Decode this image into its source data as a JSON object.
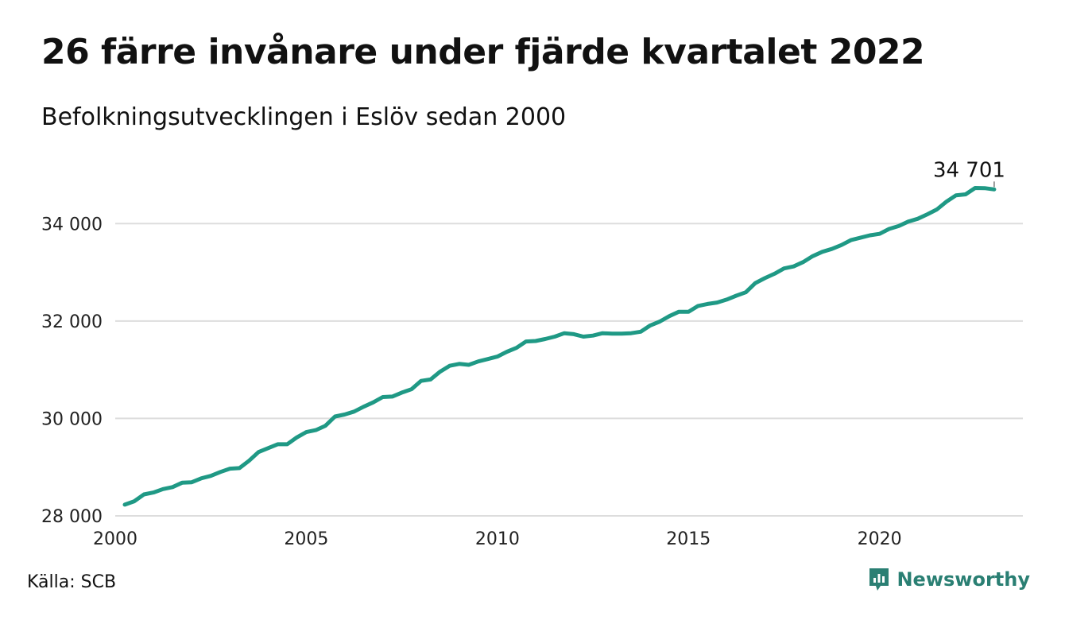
{
  "header": {
    "title": "26 färre invånare under fjärde kvartalet 2022",
    "subtitle": "Befolkningsutvecklingen i Eslöv sedan 2000"
  },
  "footer": {
    "source": "Källa: SCB",
    "brand": "Newsworthy"
  },
  "colors": {
    "line": "#1f9985",
    "grid": "#dddddd",
    "brand": "#2a7f73"
  },
  "chart_data": {
    "type": "line",
    "title": "26 färre invånare under fjärde kvartalet 2022",
    "subtitle": "Befolkningsutvecklingen i Eslöv sedan 2000",
    "xlabel": "",
    "ylabel": "",
    "xlim": [
      2000,
      2023.75
    ],
    "ylim": [
      28000,
      35000
    ],
    "x_ticks": [
      2000,
      2005,
      2010,
      2015,
      2020
    ],
    "x_tick_labels": [
      "2000",
      "2005",
      "2010",
      "2015",
      "2020"
    ],
    "y_ticks": [
      28000,
      30000,
      32000,
      34000
    ],
    "y_tick_labels": [
      "28 000",
      "30 000",
      "32 000",
      "34 000"
    ],
    "grid": "horizontal",
    "end_label": "34 701",
    "series": [
      {
        "x": [
          2000.25,
          2000.5,
          2000.75,
          2001.0,
          2001.25,
          2001.5,
          2001.75,
          2002.0,
          2002.25,
          2002.5,
          2002.75,
          2003.0,
          2003.25,
          2003.5,
          2003.75,
          2004.0,
          2004.25,
          2004.5,
          2004.75,
          2005.0,
          2005.25,
          2005.5,
          2005.75,
          2006.0,
          2006.25,
          2006.5,
          2006.75,
          2007.0,
          2007.25,
          2007.5,
          2007.75,
          2008.0,
          2008.25,
          2008.5,
          2008.75,
          2009.0,
          2009.25,
          2009.5,
          2009.75,
          2010.0,
          2010.25,
          2010.5,
          2010.75,
          2011.0,
          2011.25,
          2011.5,
          2011.75,
          2012.0,
          2012.25,
          2012.5,
          2012.75,
          2013.0,
          2013.25,
          2013.5,
          2013.75,
          2014.0,
          2014.25,
          2014.5,
          2014.75,
          2015.0,
          2015.25,
          2015.5,
          2015.75,
          2016.0,
          2016.25,
          2016.5,
          2016.75,
          2017.0,
          2017.25,
          2017.5,
          2017.75,
          2018.0,
          2018.25,
          2018.5,
          2018.75,
          2019.0,
          2019.25,
          2019.5,
          2019.75,
          2020.0,
          2020.25,
          2020.5,
          2020.75,
          2021.0,
          2021.25,
          2021.5,
          2021.75,
          2022.0,
          2022.25,
          2022.5,
          2022.75,
          2023.0
        ],
        "values": [
          28230,
          28300,
          28440,
          28480,
          28550,
          28590,
          28680,
          28690,
          28770,
          28820,
          28900,
          28970,
          28980,
          29130,
          29310,
          29390,
          29470,
          29470,
          29610,
          29720,
          29760,
          29850,
          30040,
          30080,
          30140,
          30240,
          30330,
          30440,
          30450,
          30530,
          30600,
          30770,
          30800,
          30960,
          31080,
          31120,
          31100,
          31170,
          31220,
          31270,
          31370,
          31450,
          31580,
          31590,
          31630,
          31680,
          31750,
          31730,
          31680,
          31700,
          31750,
          31740,
          31740,
          31750,
          31780,
          31910,
          31990,
          32100,
          32190,
          32190,
          32310,
          32350,
          32380,
          32440,
          32520,
          32590,
          32780,
          32880,
          32970,
          33080,
          33120,
          33210,
          33330,
          33420,
          33480,
          33560,
          33660,
          33710,
          33760,
          33790,
          33890,
          33950,
          34040,
          34100,
          34190,
          34290,
          34450,
          34580,
          34600,
          34730,
          34727,
          34701
        ]
      }
    ]
  }
}
